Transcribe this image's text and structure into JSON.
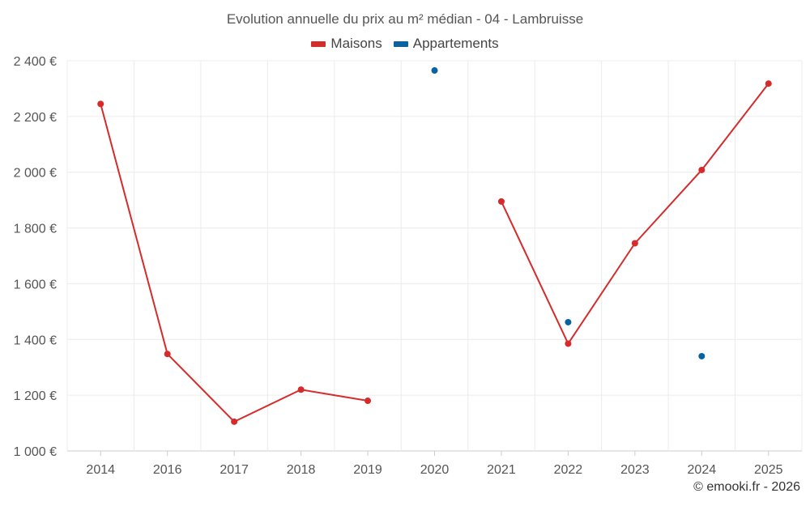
{
  "chart_data": {
    "type": "line",
    "title": "Evolution annuelle du prix au m² médian - 04 - Lambruisse",
    "categories": [
      "2014",
      "2016",
      "2017",
      "2018",
      "2019",
      "2020",
      "2021",
      "2022",
      "2023",
      "2024",
      "2025"
    ],
    "yticks": [
      "1 000 €",
      "1 200 €",
      "1 400 €",
      "1 600 €",
      "1 800 €",
      "2 000 €",
      "2 200 €",
      "2 400 €"
    ],
    "ylim": [
      1000,
      2400
    ],
    "grid": true,
    "legend_position": "top-center",
    "series": [
      {
        "name": "Maisons",
        "color": "#d52b2b",
        "values": [
          2245,
          1348,
          1105,
          1220,
          1180,
          null,
          1895,
          1385,
          1745,
          2008,
          2318
        ]
      },
      {
        "name": "Appartements",
        "color": "#0a62a0",
        "values": [
          null,
          null,
          null,
          null,
          null,
          2365,
          null,
          1462,
          null,
          1340,
          null
        ]
      }
    ],
    "credit": "© emooki.fr - 2026"
  }
}
